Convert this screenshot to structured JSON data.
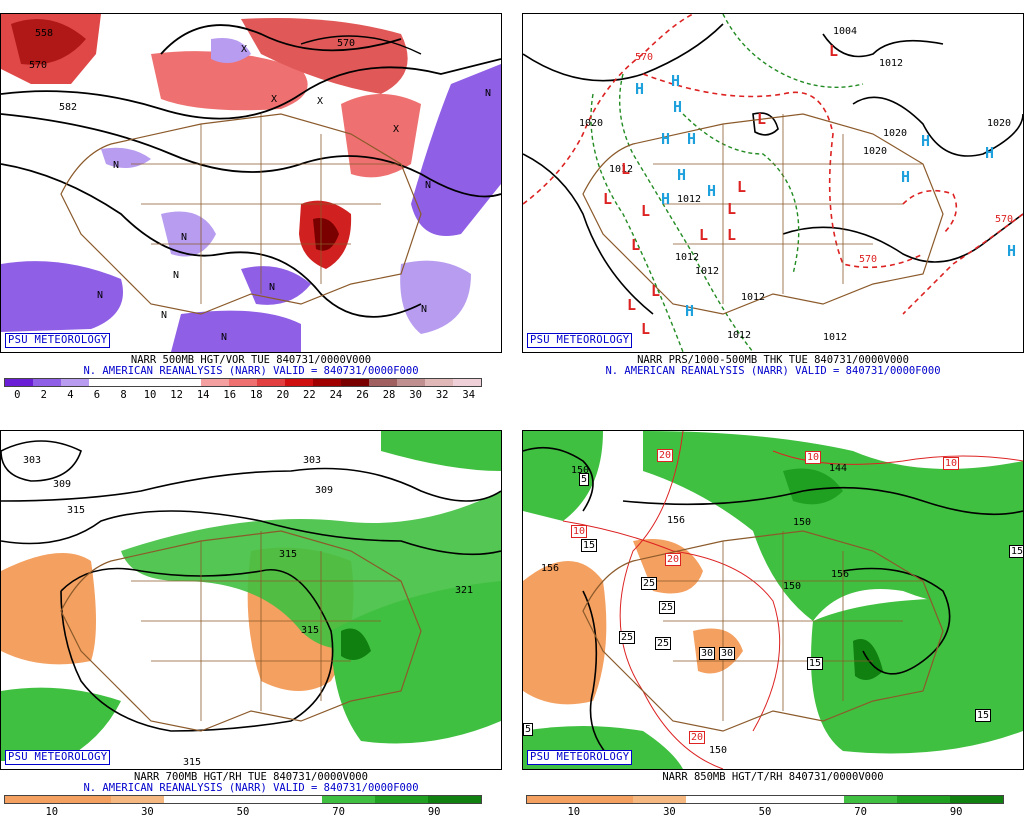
{
  "panels": [
    {
      "id": "tl",
      "logo": "PSU METEOROLOGY",
      "caption1": "NARR 500MB HGT/VOR TUE 840731/0000V000",
      "caption2": "N. AMERICAN REANALYSIS (NARR) VALID = 840731/0000F000",
      "map_labels": [
        "558",
        "570",
        "582",
        "570",
        "N",
        "N",
        "N",
        "N",
        "N",
        "N",
        "N",
        "N",
        "N",
        "N",
        "X",
        "X",
        "X",
        "X"
      ],
      "colorbar": {
        "colors": [
          "#6a1fd6",
          "#8f5fe6",
          "#b89cf0",
          "#ffffff",
          "#ffffff",
          "#ffffff",
          "#ffffff",
          "#f4a0a0",
          "#ee7070",
          "#e24040",
          "#d01010",
          "#a00000",
          "#7a0000",
          "#a06060",
          "#c09090",
          "#e0b8b8",
          "#f0d0d8"
        ],
        "labels": [
          "0",
          "2",
          "4",
          "6",
          "8",
          "10",
          "12",
          "14",
          "16",
          "18",
          "20",
          "22",
          "24",
          "26",
          "28",
          "30",
          "32",
          "34"
        ]
      }
    },
    {
      "id": "tr",
      "logo": "PSU METEOROLOGY",
      "caption1": "NARR PRS/1000-500MB THK TUE 840731/0000V000",
      "caption2": "N. AMERICAN REANALYSIS (NARR) VALID = 840731/0000F000",
      "map_labels": [
        "570",
        "1004",
        "1012",
        "1020",
        "1020",
        "1020",
        "1020",
        "1012",
        "1012",
        "1012",
        "1012",
        "1012",
        "1012",
        "1012",
        "570",
        "570",
        "H",
        "H",
        "H",
        "H",
        "H",
        "H",
        "H",
        "H",
        "H",
        "H",
        "H",
        "H",
        "H",
        "L",
        "L",
        "L",
        "L",
        "L",
        "L",
        "L",
        "L",
        "L",
        "L",
        "L",
        "L",
        "L"
      ]
    },
    {
      "id": "bl",
      "logo": "PSU METEOROLOGY",
      "caption1": "NARR 700MB HGT/RH TUE 840731/0000V000",
      "caption2": "N. AMERICAN REANALYSIS (NARR) VALID = 840731/0000F000",
      "map_labels": [
        "303",
        "309",
        "315",
        "309",
        "303",
        "315",
        "321",
        "315",
        "315"
      ],
      "colorbar": {
        "colors": [
          "#f4a060",
          "#f4a060",
          "#f4b880",
          "#ffffff",
          "#ffffff",
          "#ffffff",
          "#40c040",
          "#20a020",
          "#108010"
        ],
        "labels": [
          "10",
          "30",
          "50",
          "70",
          "90"
        ]
      }
    },
    {
      "id": "br",
      "logo": "PSU METEOROLOGY",
      "caption1": "NARR 850MB HGT/T/RH 840731/0000V000",
      "caption2": "",
      "map_labels": [
        "150",
        "156",
        "150",
        "144",
        "150",
        "156",
        "156",
        "150",
        "5",
        "15",
        "10",
        "20",
        "20",
        "25",
        "25",
        "25",
        "25",
        "30",
        "30",
        "15",
        "15",
        "15",
        "10",
        "10",
        "20",
        "5"
      ],
      "colorbar": {
        "colors": [
          "#f4a060",
          "#f4a060",
          "#f4b880",
          "#ffffff",
          "#ffffff",
          "#ffffff",
          "#40c040",
          "#20a020",
          "#108010"
        ],
        "labels": [
          "10",
          "30",
          "50",
          "70",
          "90"
        ]
      }
    }
  ]
}
